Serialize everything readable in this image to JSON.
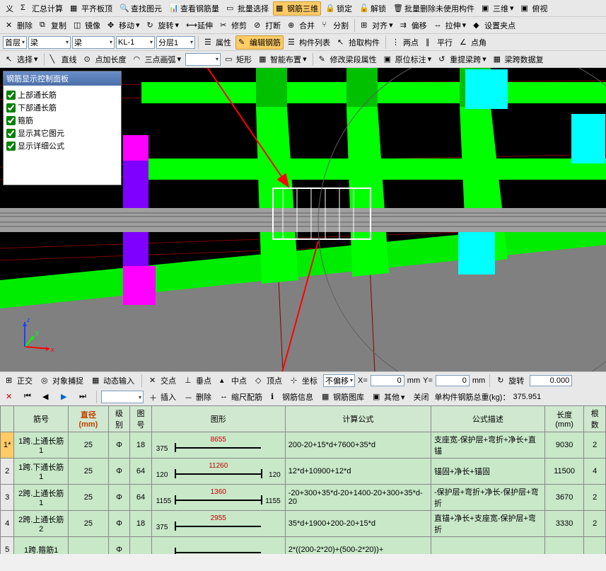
{
  "toolbar1": {
    "yi": "义",
    "sigma": "汇总计算",
    "align_top": "平齐板顶",
    "find_elem": "查找图元",
    "check_rebar": "查看钢筋量",
    "batch_sel": "批量选择",
    "rebar_3d": "钢筋三维",
    "lock": "锁定",
    "unlock": "解锁",
    "batch_del": "批量删除未使用构件",
    "view3d": "三维",
    "perspective": "俯视"
  },
  "toolbar2": {
    "del": "删除",
    "copy": "复制",
    "mirror": "镜像",
    "move": "移动",
    "rotate": "旋转",
    "extend": "延伸",
    "trim": "修剪",
    "break": "打断",
    "merge": "合并",
    "split": "分割",
    "align": "对齐",
    "offset": "偏移",
    "stretch": "拉伸",
    "set_clamp": "设置夹点"
  },
  "toolbar3": {
    "floor": "首层",
    "cat": "梁",
    "type": "梁",
    "name": "KL-1",
    "layer": "分层1",
    "props": "属性",
    "edit_rebar": "编辑钢筋",
    "list": "构件列表",
    "pick": "拾取构件",
    "two_pt": "两点",
    "parallel": "平行",
    "pt_angle": "点角"
  },
  "toolbar4": {
    "select": "选择",
    "line": "直线",
    "pt_plus": "点加长度",
    "three_pt": "三点画弧",
    "rect": "矩形",
    "smart": "智能布置",
    "modify": "修改梁段属性",
    "orig_mark": "原位标注",
    "reset_beam": "重提梁跨",
    "span_data": "梁跨数据复"
  },
  "panel": {
    "title": "钢筋显示控制面板",
    "items": [
      "上部通长筋",
      "下部通长筋",
      "箍筋",
      "显示其它图元",
      "显示详细公式"
    ]
  },
  "status": {
    "ortho": "正交",
    "obj_snap": "对象捕捉",
    "dyn_input": "动态输入",
    "cross": "交点",
    "perp": "垂点",
    "mid": "中点",
    "apex": "顶点",
    "coord": "坐标",
    "no_offset": "不偏移",
    "x": "0",
    "y": "0",
    "unit": "mm",
    "rotate": "旋转",
    "angle": "0.000"
  },
  "grid_tb": {
    "insert": "插入",
    "delete": "删除",
    "scale_rebar": "缩尺配筋",
    "rebar_info": "钢筋信息",
    "rebar_lib": "钢筋图库",
    "other": "其他",
    "close": "关闭",
    "total_label": "单构件钢筋总重(kg)：",
    "total_val": "375.951"
  },
  "grid": {
    "cols": [
      "",
      "筋号",
      "直径(mm)",
      "级别",
      "图号",
      "图形",
      "计算公式",
      "公式描述",
      "长度(mm)",
      "根数"
    ],
    "col_dia_idx": 2,
    "rows": [
      {
        "n": "1*",
        "sel": true,
        "name": "1跨.上通长筋1",
        "dia": "25",
        "grade": "Φ",
        "fig": "18",
        "shape": {
          "l": "375",
          "mid": "8655",
          "r": ""
        },
        "formula": "200-20+15*d+7600+35*d",
        "desc": "支座宽-保护层+弯折+净长+直锚",
        "len": "9030",
        "cnt": "2"
      },
      {
        "n": "2",
        "name": "1跨.下通长筋1",
        "dia": "25",
        "grade": "Φ",
        "fig": "64",
        "shape": {
          "l": "120",
          "mid": "11260",
          "r": "120"
        },
        "formula": "12*d+10900+12*d",
        "desc": "锚固+净长+锚固",
        "len": "11500",
        "cnt": "4"
      },
      {
        "n": "3",
        "name": "2跨.上通长筋1",
        "dia": "25",
        "grade": "Φ",
        "fig": "64",
        "shape": {
          "l": "1155",
          "mid": "1360",
          "r": "1155"
        },
        "formula": "-20+300+35*d-20+1400-20+300+35*d-20",
        "desc": "-保护层+弯折+净长-保护层+弯折",
        "len": "3670",
        "cnt": "2"
      },
      {
        "n": "4",
        "name": "2跨.上通长筋2",
        "dia": "25",
        "grade": "Φ",
        "fig": "18",
        "shape": {
          "l": "375",
          "mid": "2955",
          "r": ""
        },
        "formula": "35*d+1900+200-20+15*d",
        "desc": "直锚+净长+支座宽-保护层+弯折",
        "len": "3330",
        "cnt": "2"
      },
      {
        "n": "5",
        "name": "1跨.箍筋1",
        "dia": "",
        "grade": "Φ",
        "fig": "",
        "shape": {
          "l": "",
          "mid": "",
          "r": ""
        },
        "formula": "2*((200-2*20)+(500-2*20))+",
        "desc": "",
        "len": "",
        "cnt": ""
      }
    ]
  },
  "viewport": {
    "bg": "#000000",
    "gray": "#808080",
    "gray2": "#a0a0a0",
    "green": "#00ff00",
    "green2": "#00c000",
    "cyan": "#00ffff",
    "magenta": "#ff00ff",
    "purple": "#8000ff",
    "red": "#ff0000",
    "darkred": "#800000",
    "blue": "#2040ff",
    "white": "#ffffff"
  }
}
